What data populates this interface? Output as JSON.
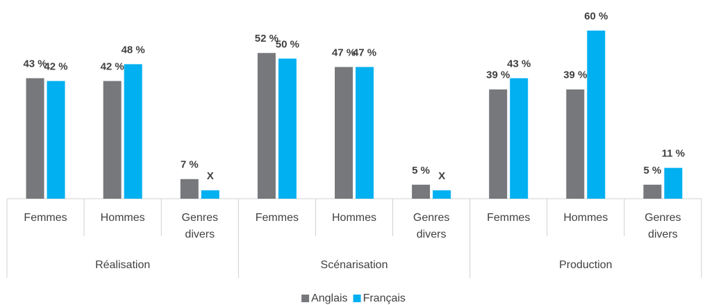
{
  "chart_data": {
    "type": "bar",
    "groups": [
      "Réalisation",
      "Scénarisation",
      "Production"
    ],
    "categories": [
      "Femmes",
      "Hommes",
      "Genres divers",
      "Femmes",
      "Hommes",
      "Genres divers",
      "Femmes",
      "Hommes",
      "Genres divers"
    ],
    "series": [
      {
        "name": "Anglais",
        "color": "#76787b",
        "values": [
          43,
          42,
          7,
          52,
          47,
          5,
          39,
          39,
          5
        ],
        "value_labels": [
          "43 %",
          "42 %",
          "7 %",
          "52 %",
          "47 %",
          "5 %",
          "39 %",
          "39 %",
          "5 %"
        ]
      },
      {
        "name": "Français",
        "color": "#00b0f0",
        "values": [
          42,
          48,
          3,
          50,
          47,
          3,
          43,
          60,
          11
        ],
        "value_labels": [
          "42 %",
          "48 %",
          "X",
          "50 %",
          "47 %",
          "X",
          "43 %",
          "60 %",
          "11 %"
        ]
      }
    ],
    "ylim": [
      0,
      60
    ],
    "legend": "bottom"
  }
}
